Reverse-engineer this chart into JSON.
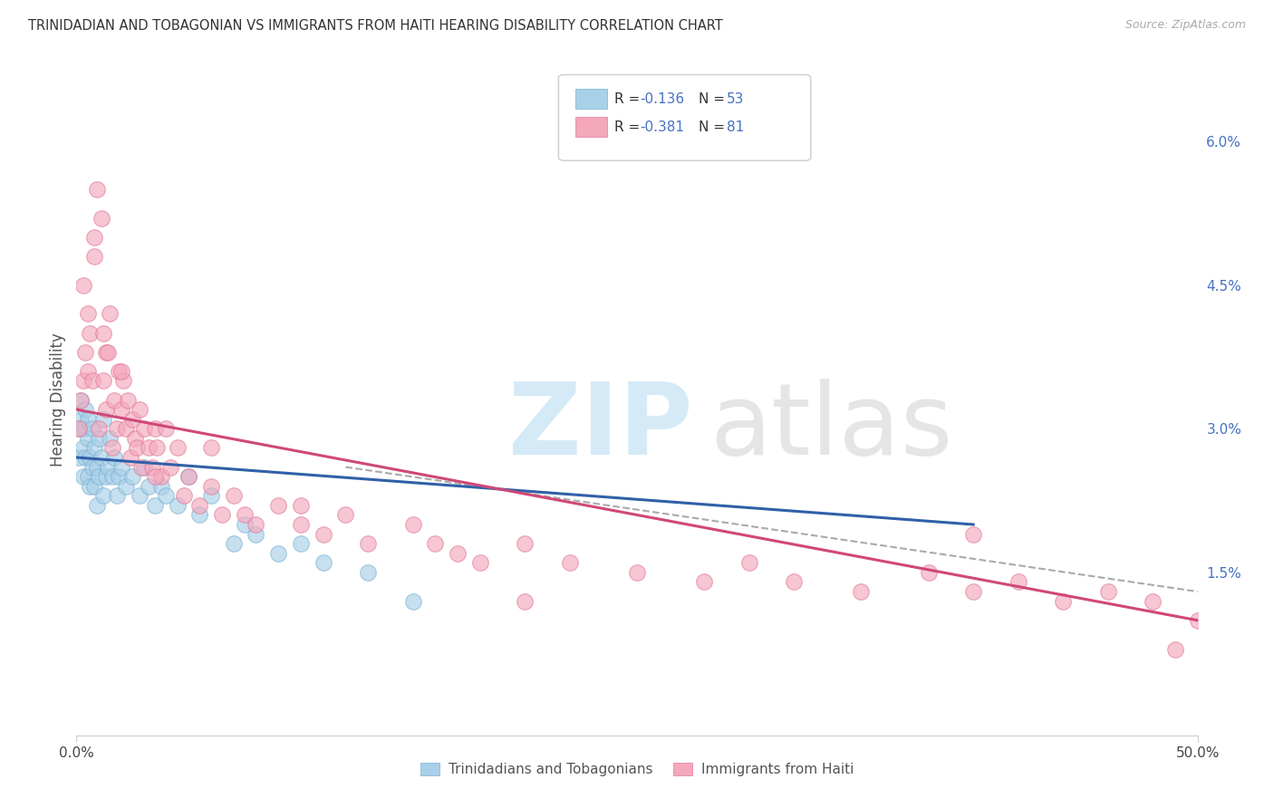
{
  "title": "TRINIDADIAN AND TOBAGONIAN VS IMMIGRANTS FROM HAITI HEARING DISABILITY CORRELATION CHART",
  "source": "Source: ZipAtlas.com",
  "ylabel": "Hearing Disability",
  "ytick_vals": [
    0.0,
    0.015,
    0.03,
    0.045,
    0.06
  ],
  "ytick_labels": [
    "",
    "1.5%",
    "3.0%",
    "4.5%",
    "6.0%"
  ],
  "xlim": [
    0.0,
    0.5
  ],
  "ylim": [
    -0.002,
    0.068
  ],
  "r1": -0.136,
  "n1": 53,
  "r2": -0.381,
  "n2": 81,
  "color_blue_fill": "#a8d0e8",
  "color_blue_edge": "#7ab0d0",
  "color_pink_fill": "#f4a8bc",
  "color_pink_edge": "#e07898",
  "color_blue_line": "#3060a8",
  "color_pink_line": "#d04878",
  "color_dashed": "#aaaaaa",
  "legend1_label": "Trinidadians and Tobagonians",
  "legend2_label": "Immigrants from Haiti",
  "blue_line_x0": 0.0,
  "blue_line_x1": 0.4,
  "blue_line_y0": 0.027,
  "blue_line_y1": 0.02,
  "pink_line_x0": 0.0,
  "pink_line_x1": 0.5,
  "pink_line_y0": 0.032,
  "pink_line_y1": 0.01,
  "dash_line_x0": 0.12,
  "dash_line_x1": 0.5,
  "dash_line_y0": 0.026,
  "dash_line_y1": 0.013
}
